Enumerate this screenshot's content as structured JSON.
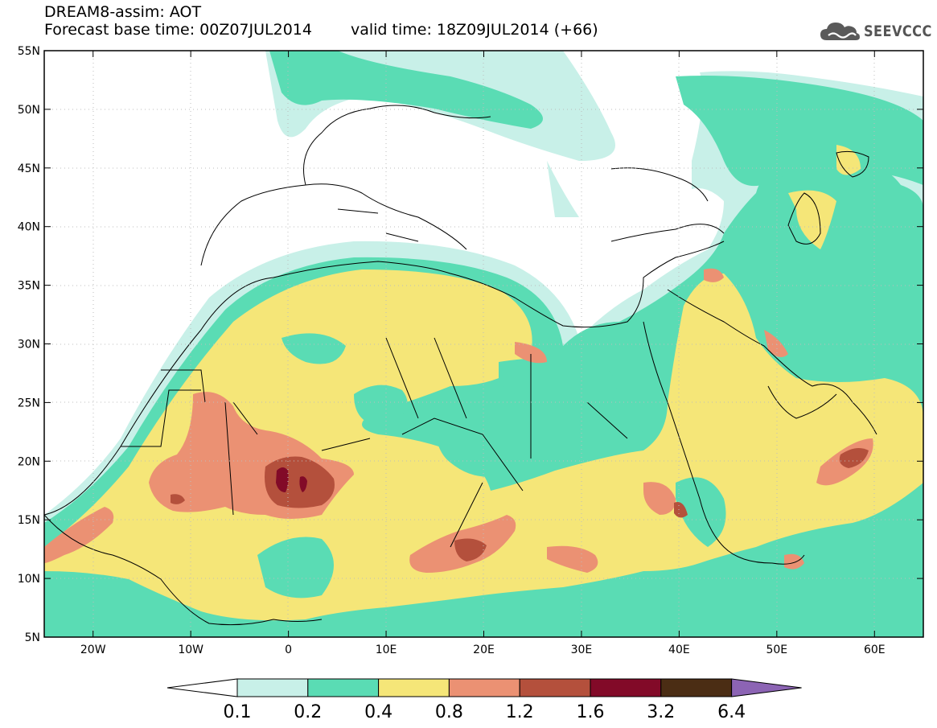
{
  "header": {
    "title": "DREAM8-assim: AOT",
    "base_time_label": "Forecast base time: 00Z07JUL2014",
    "valid_time_label": "valid time: 18Z09JUL2014 (+66)"
  },
  "logo": {
    "text": "SEEVCCC",
    "icon": "cloud-logo-icon",
    "color": "#5a5a5a"
  },
  "map": {
    "lon_range": [
      -25,
      65
    ],
    "lat_range": [
      5,
      55
    ],
    "lon_ticks": [
      {
        "value": -20,
        "label": "20W"
      },
      {
        "value": -10,
        "label": "10W"
      },
      {
        "value": 0,
        "label": "0"
      },
      {
        "value": 10,
        "label": "10E"
      },
      {
        "value": 20,
        "label": "20E"
      },
      {
        "value": 30,
        "label": "30E"
      },
      {
        "value": 40,
        "label": "40E"
      },
      {
        "value": 50,
        "label": "50E"
      },
      {
        "value": 60,
        "label": "60E"
      }
    ],
    "lat_ticks": [
      {
        "value": 55,
        "label": "55N"
      },
      {
        "value": 50,
        "label": "50N"
      },
      {
        "value": 45,
        "label": "45N"
      },
      {
        "value": 40,
        "label": "40N"
      },
      {
        "value": 35,
        "label": "35N"
      },
      {
        "value": 30,
        "label": "30N"
      },
      {
        "value": 25,
        "label": "25N"
      },
      {
        "value": 20,
        "label": "20N"
      },
      {
        "value": 15,
        "label": "15N"
      },
      {
        "value": 10,
        "label": "10N"
      },
      {
        "value": 5,
        "label": "5N"
      }
    ]
  },
  "colorbar": {
    "colors": [
      "#ffffff",
      "#c8f0e8",
      "#5adcb4",
      "#f5e678",
      "#eb9173",
      "#b4503c",
      "#820a28",
      "#4b2d14",
      "#8c64b4"
    ],
    "labels": [
      "0.1",
      "0.2",
      "0.4",
      "0.8",
      "1.2",
      "1.6",
      "3.2",
      "6.4"
    ]
  }
}
